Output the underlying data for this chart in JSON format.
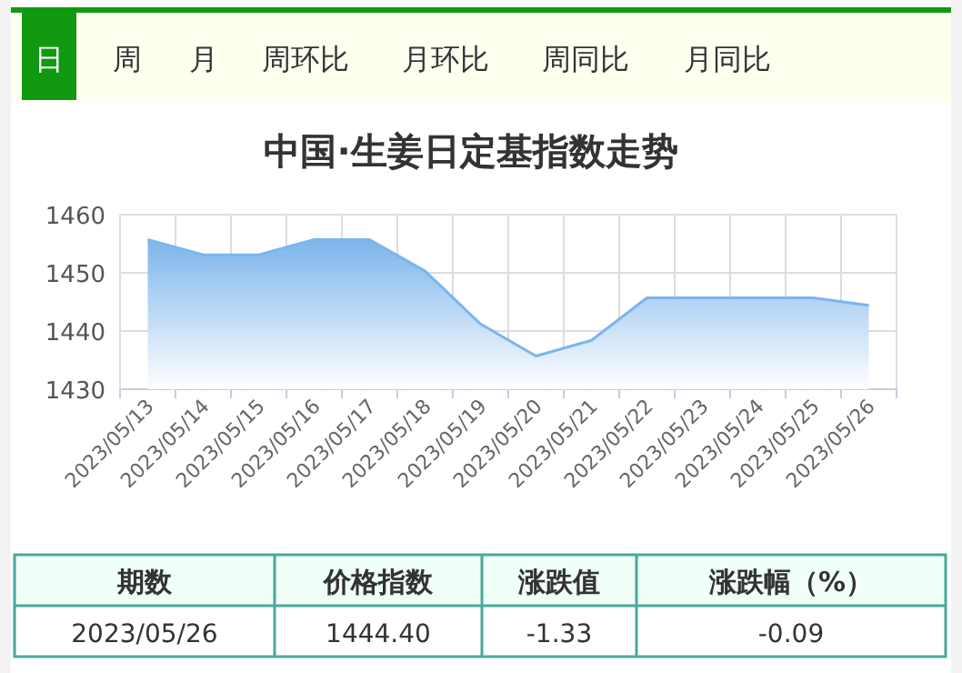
{
  "chart_data": {
    "type": "area",
    "title": "中国·生姜日定基指数走势",
    "categories": [
      "2023/05/13",
      "2023/05/14",
      "2023/05/15",
      "2023/05/16",
      "2023/05/17",
      "2023/05/18",
      "2023/05/19",
      "2023/05/20",
      "2023/05/21",
      "2023/05/22",
      "2023/05/23",
      "2023/05/24",
      "2023/05/25",
      "2023/05/26"
    ],
    "series": [
      {
        "color": "#7cb5ec",
        "values": [
          1455.7,
          1453.1,
          1453.1,
          1455.7,
          1455.7,
          1450.3,
          1441.2,
          1435.7,
          1438.4,
          1445.7,
          1445.7,
          1445.7,
          1445.7,
          1444.4
        ]
      }
    ],
    "ylim": [
      1430,
      1460
    ],
    "yticks": [
      1430,
      1440,
      1450,
      1460
    ],
    "grid": true,
    "annotations": [
      "日",
      "周",
      "月",
      "周环比",
      "月环比",
      "周同比",
      "月同比",
      "期数",
      "价格指数",
      "涨跌值",
      "涨跌幅（%）",
      "2023/05/26",
      "1444.40",
      "-1.33",
      "-0.09"
    ]
  }
}
